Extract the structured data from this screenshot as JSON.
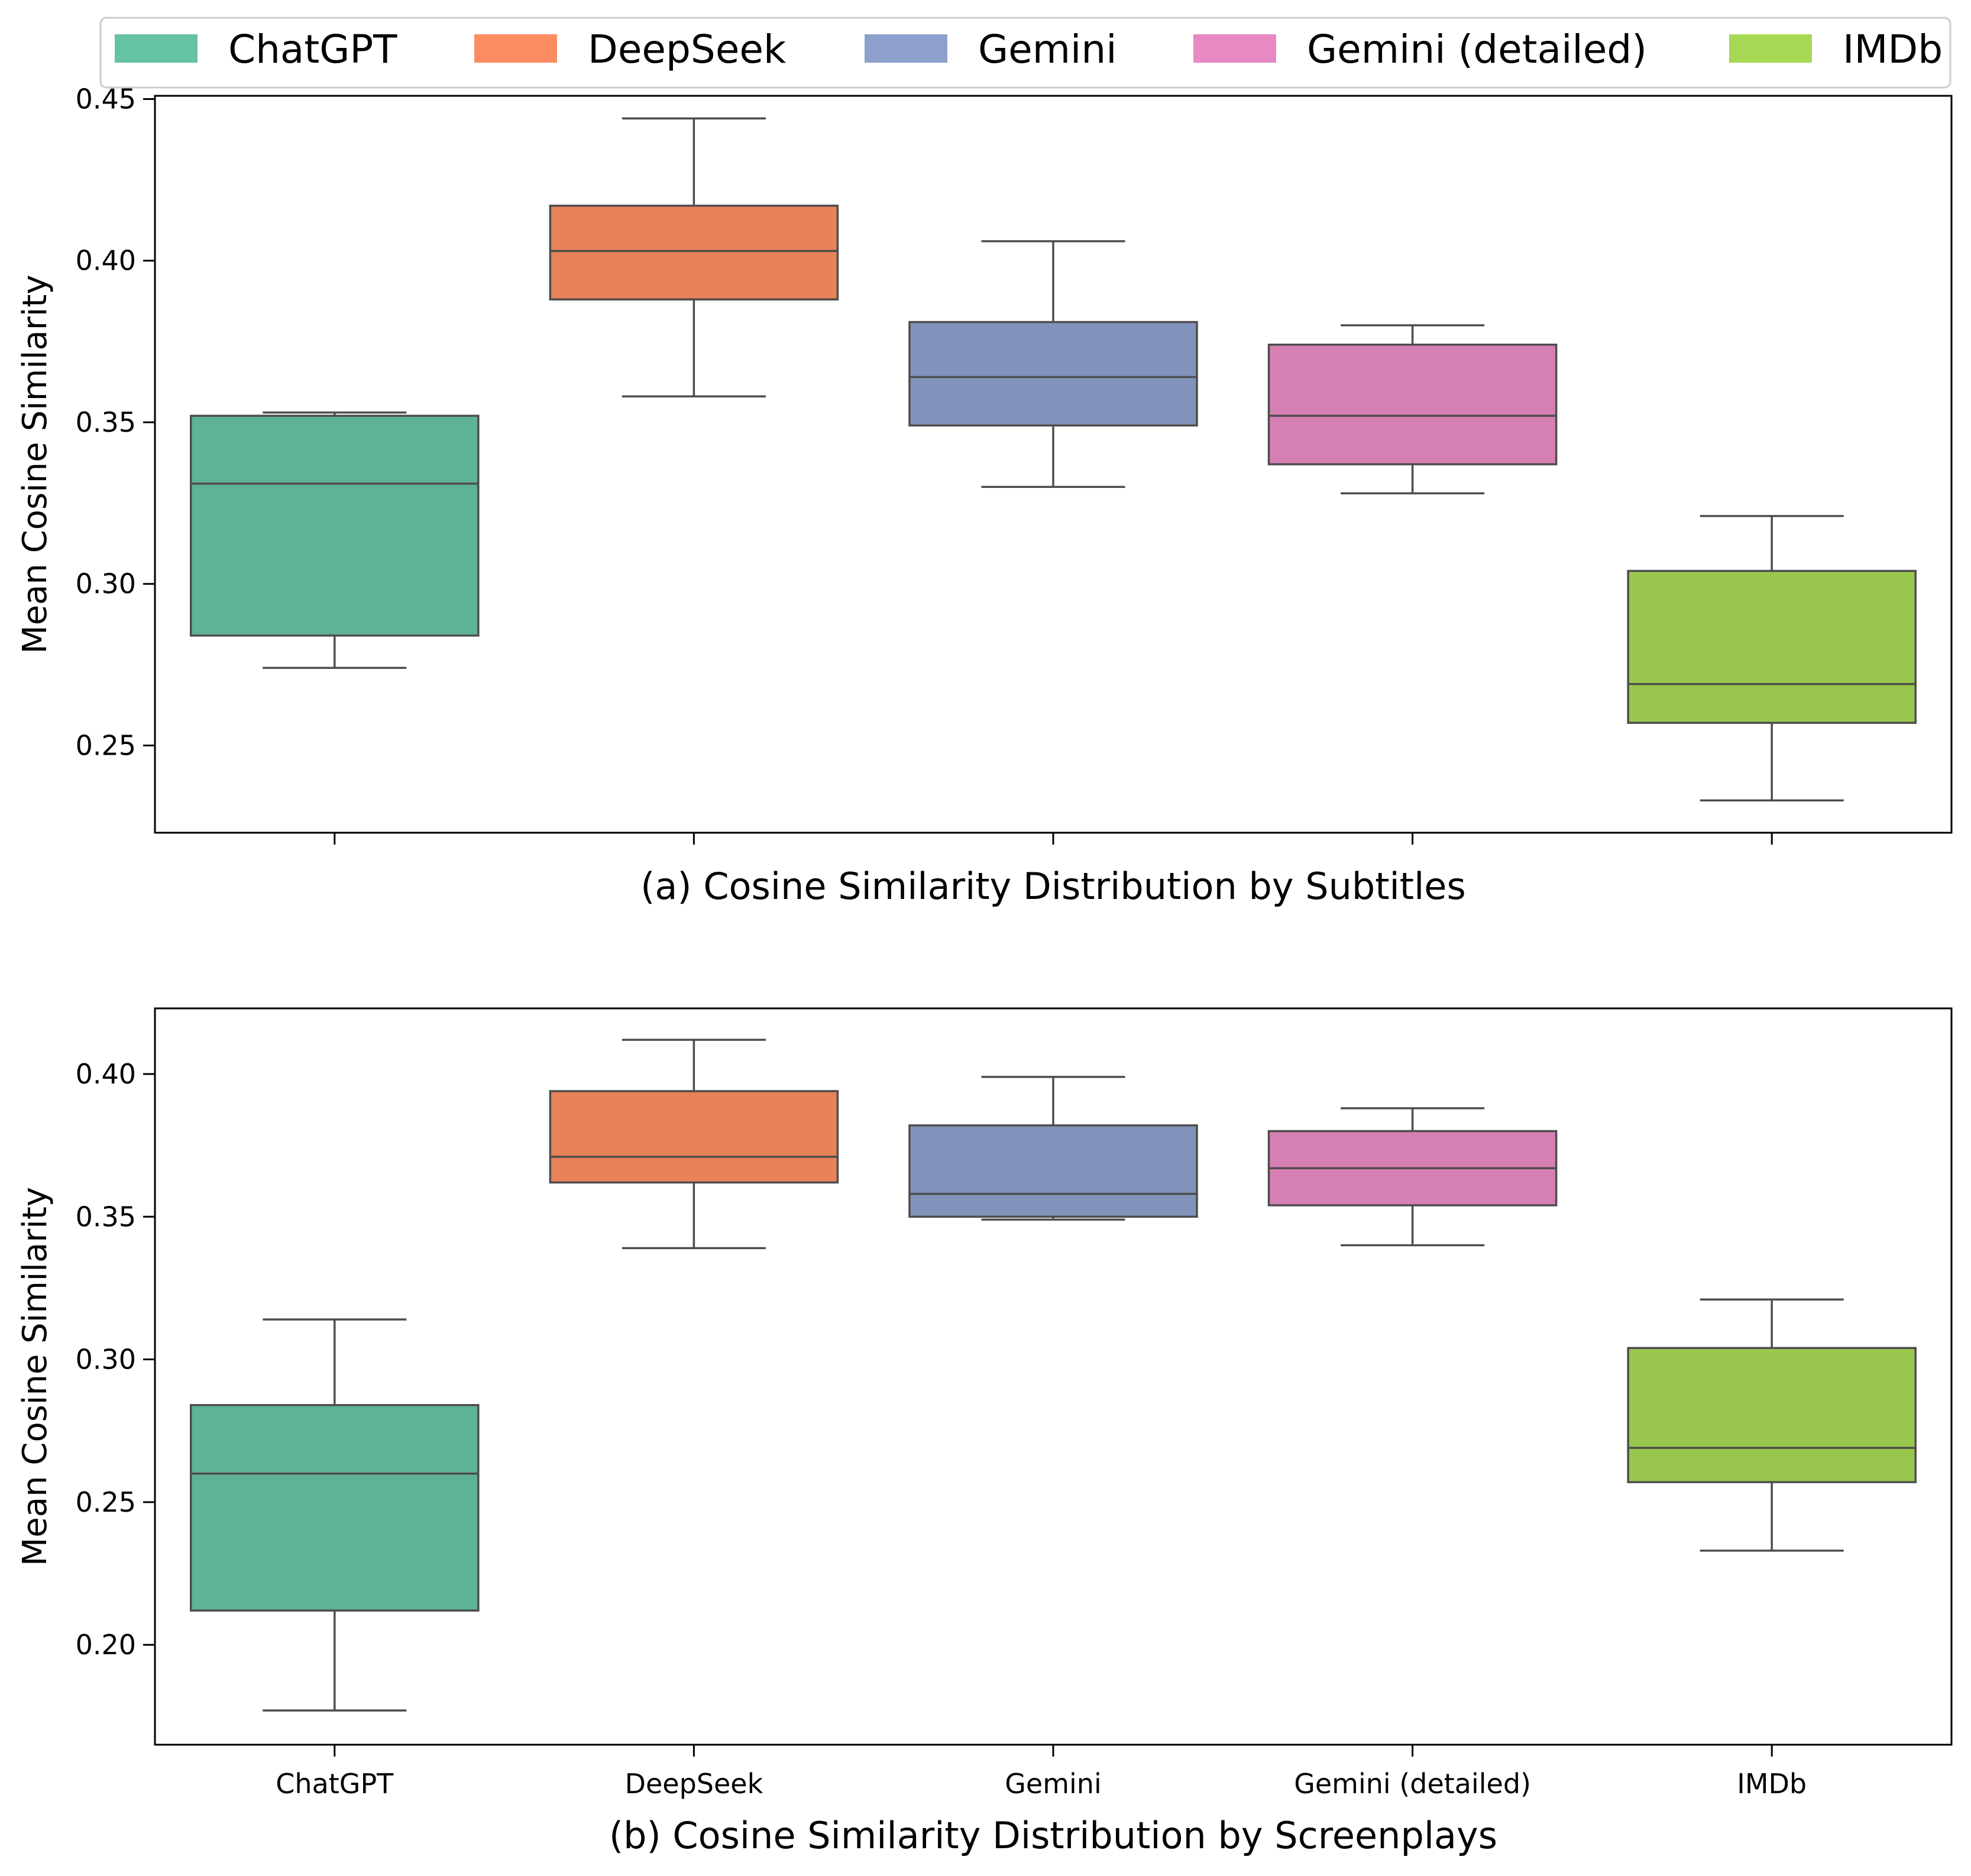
{
  "legend": {
    "location": "top",
    "items": [
      {
        "label": "ChatGPT",
        "color": "#66c2a5"
      },
      {
        "label": "DeepSeek",
        "color": "#fc8d62"
      },
      {
        "label": "Gemini",
        "color": "#8da0cb"
      },
      {
        "label": "Gemini (detailed)",
        "color": "#e78ac3"
      },
      {
        "label": "IMDb",
        "color": "#a6d854"
      }
    ]
  },
  "chart_data": [
    {
      "type": "box",
      "title": "(a) Cosine Similarity Distribution by Subtitles",
      "xlabel": "",
      "ylabel": "Mean Cosine Similarity",
      "ylim": [
        0.223,
        0.451
      ],
      "yticks": [
        "0.25",
        "0.30",
        "0.35",
        "0.40",
        "0.45"
      ],
      "categories": [
        "ChatGPT",
        "DeepSeek",
        "Gemini",
        "Gemini (detailed)",
        "IMDb"
      ],
      "show_category_labels": false,
      "grid": false,
      "boxes": [
        {
          "category": "ChatGPT",
          "whisker_low": 0.274,
          "q1": 0.284,
          "median": 0.331,
          "q3": 0.352,
          "whisker_high": 0.353
        },
        {
          "category": "DeepSeek",
          "whisker_low": 0.358,
          "q1": 0.388,
          "median": 0.403,
          "q3": 0.417,
          "whisker_high": 0.444
        },
        {
          "category": "Gemini",
          "whisker_low": 0.33,
          "q1": 0.349,
          "median": 0.364,
          "q3": 0.381,
          "whisker_high": 0.406
        },
        {
          "category": "Gemini (detailed)",
          "whisker_low": 0.328,
          "q1": 0.337,
          "median": 0.352,
          "q3": 0.374,
          "whisker_high": 0.38
        },
        {
          "category": "IMDb",
          "whisker_low": 0.233,
          "q1": 0.257,
          "median": 0.269,
          "q3": 0.304,
          "whisker_high": 0.321
        }
      ]
    },
    {
      "type": "box",
      "title": "(b) Cosine Similarity Distribution by Screenplays",
      "xlabel": "",
      "ylabel": "Mean Cosine Similarity",
      "ylim": [
        0.165,
        0.423
      ],
      "yticks": [
        "0.20",
        "0.25",
        "0.30",
        "0.35",
        "0.40"
      ],
      "categories": [
        "ChatGPT",
        "DeepSeek",
        "Gemini",
        "Gemini (detailed)",
        "IMDb"
      ],
      "show_category_labels": true,
      "grid": false,
      "boxes": [
        {
          "category": "ChatGPT",
          "whisker_low": 0.177,
          "q1": 0.212,
          "median": 0.26,
          "q3": 0.284,
          "whisker_high": 0.314
        },
        {
          "category": "DeepSeek",
          "whisker_low": 0.339,
          "q1": 0.362,
          "median": 0.371,
          "q3": 0.394,
          "whisker_high": 0.412
        },
        {
          "category": "Gemini",
          "whisker_low": 0.349,
          "q1": 0.35,
          "median": 0.358,
          "q3": 0.382,
          "whisker_high": 0.399
        },
        {
          "category": "Gemini (detailed)",
          "whisker_low": 0.34,
          "q1": 0.354,
          "median": 0.367,
          "q3": 0.38,
          "whisker_high": 0.388
        },
        {
          "category": "IMDb",
          "whisker_low": 0.233,
          "q1": 0.257,
          "median": 0.269,
          "q3": 0.304,
          "whisker_high": 0.321
        }
      ]
    }
  ]
}
